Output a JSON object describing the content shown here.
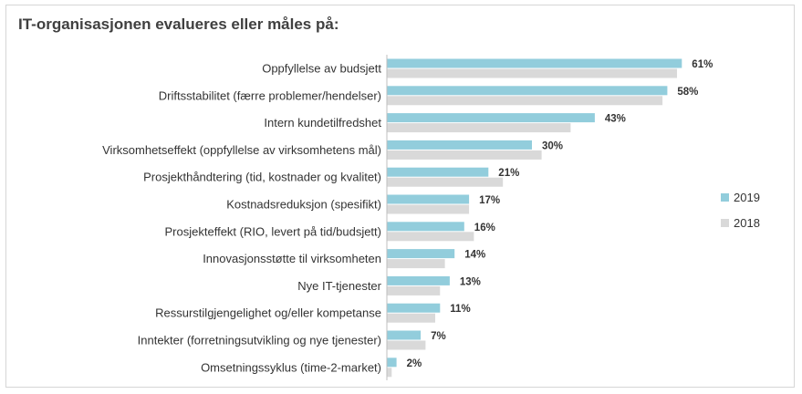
{
  "chart_data": {
    "type": "bar",
    "orientation": "horizontal",
    "title": "IT-organisasjonen evalueres eller måles på:",
    "xlabel": "",
    "ylabel": "",
    "xlim": [
      0,
      70
    ],
    "grid": false,
    "legend": "right",
    "value_suffix": "%",
    "categories": [
      "Oppfyllelse av budsjett",
      "Driftsstabilitet (færre problemer/hendelser)",
      "Intern kundetilfredshet",
      "Virksomhetseffekt (oppfyllelse av virksomhetens mål)",
      "Prosjekthåndtering (tid, kostnader og kvalitet)",
      "Kostnadsreduksjon (spesifikt)",
      "Prosjekteffekt (RIO, levert på tid/budsjett)",
      "Innovasjonsstøtte til virksomheten",
      "Nye IT-tjenester",
      "Ressurstilgjengelighet og/eller kompetanse",
      "Inntekter (forretningsutvikling og nye tjenester)",
      "Omsetningssyklus (time-2-market)"
    ],
    "series": [
      {
        "name": "2019",
        "color": "#92cddc",
        "values": [
          61,
          58,
          43,
          30,
          21,
          17,
          16,
          14,
          13,
          11,
          7,
          2
        ]
      },
      {
        "name": "2018",
        "color": "#d9d9d9",
        "values": [
          60,
          57,
          38,
          32,
          24,
          17,
          18,
          12,
          11,
          10,
          8,
          1
        ]
      }
    ]
  }
}
